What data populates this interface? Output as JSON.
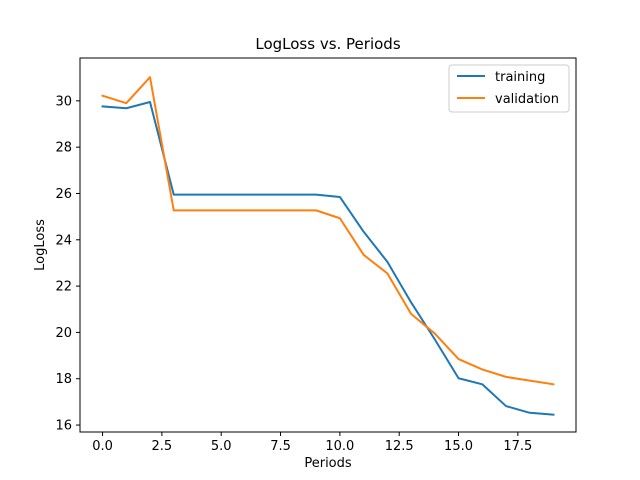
{
  "chart_data": {
    "type": "line",
    "title": "LogLoss vs. Periods",
    "xlabel": "Periods",
    "ylabel": "LogLoss",
    "xlim": [
      -0.95,
      19.95
    ],
    "ylim": [
      15.7,
      31.85
    ],
    "xticks": [
      0,
      2.5,
      5,
      7.5,
      10,
      12.5,
      15,
      17.5
    ],
    "xtick_labels": [
      "0.0",
      "2.5",
      "5.0",
      "7.5",
      "10.0",
      "12.5",
      "15.0",
      "17.5"
    ],
    "yticks": [
      16,
      18,
      20,
      22,
      24,
      26,
      28,
      30
    ],
    "ytick_labels": [
      "16",
      "18",
      "20",
      "22",
      "24",
      "26",
      "28",
      "30"
    ],
    "grid": false,
    "legend_position": "top-right",
    "x": [
      0,
      1,
      2,
      3,
      4,
      5,
      6,
      7,
      8,
      9,
      10,
      11,
      12,
      13,
      14,
      15,
      16,
      17,
      18,
      19
    ],
    "series": [
      {
        "name": "training",
        "color": "#1f77b4",
        "values": [
          29.76,
          29.68,
          29.95,
          25.95,
          25.95,
          25.95,
          25.95,
          25.95,
          25.95,
          25.95,
          25.85,
          24.35,
          23.05,
          21.3,
          19.7,
          18.02,
          17.76,
          16.82,
          16.53,
          16.45
        ]
      },
      {
        "name": "validation",
        "color": "#ff7f0e",
        "values": [
          30.22,
          29.9,
          31.02,
          25.27,
          25.27,
          25.27,
          25.27,
          25.27,
          25.27,
          25.27,
          24.93,
          23.35,
          22.55,
          20.8,
          19.95,
          18.85,
          18.4,
          18.08,
          17.92,
          17.76
        ]
      }
    ]
  }
}
